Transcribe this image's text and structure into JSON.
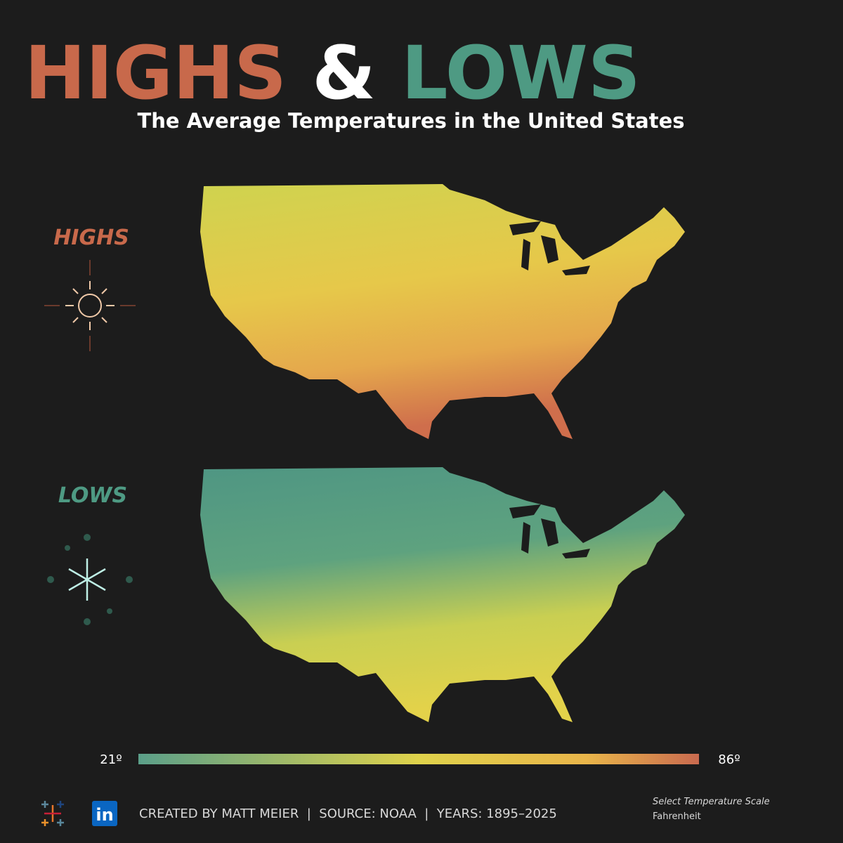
{
  "header": {
    "title_highs": "HIGHS",
    "title_amp": "&",
    "title_lows": "LOWS",
    "subtitle": "The Average Temperatures in the United States"
  },
  "maps": [
    {
      "label": "HIGHS"
    },
    {
      "label": "LOWS"
    }
  ],
  "legend": {
    "min_label": "21º",
    "max_label": "86º"
  },
  "footer": {
    "linkedin": "in",
    "credits": "CREATED BY MATT MEIER  |  SOURCE: NOAA  |  YEARS: 1895–2025",
    "scale_prompt": "Select Temperature Scale",
    "scale_value": "Fahrenheit"
  }
}
